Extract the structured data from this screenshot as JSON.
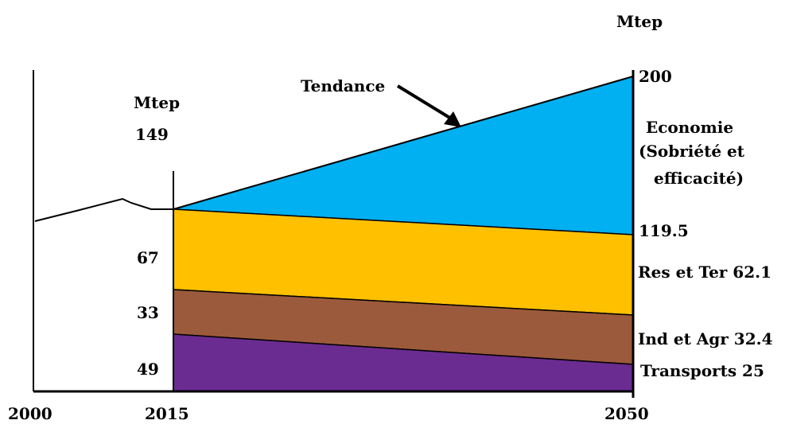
{
  "chart_data": {
    "type": "area",
    "unit": "Mtep",
    "x": [
      2015,
      2050
    ],
    "x_tick_labels": [
      "2000",
      "2015",
      "2050"
    ],
    "history_label": "149",
    "trend": {
      "label": "Tendance",
      "values": [
        149,
        200
      ]
    },
    "economy": {
      "label": [
        "Economie",
        "(Sobriété et",
        "efficacité)"
      ]
    },
    "total_2050": 119.5,
    "total_2050_label": "119.5",
    "trend_2050_label": "200",
    "series": [
      {
        "name": "Transports",
        "values": [
          49,
          25
        ],
        "start_label": "49",
        "end_label": "Transports 25",
        "color": "#6a2c91"
      },
      {
        "name": "Ind et Agr",
        "values": [
          33,
          32.4
        ],
        "start_label": "33",
        "end_label": "Ind et Agr 32.4",
        "color": "#9c5a3c"
      },
      {
        "name": "Res et Ter",
        "values": [
          67,
          62.1
        ],
        "start_label": "67",
        "end_label": "Res et Ter 62.1",
        "color": "#ffc000"
      }
    ],
    "colors": {
      "economy": "#00b0f0",
      "axis": "#000000"
    }
  }
}
